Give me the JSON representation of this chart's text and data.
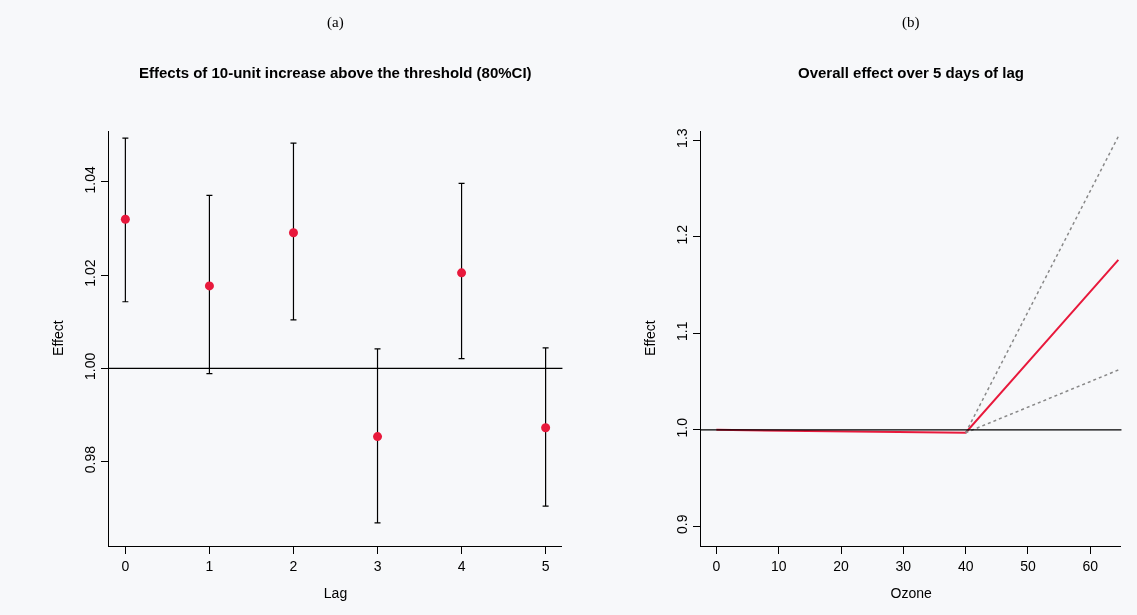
{
  "chart_data": [
    {
      "type": "scatter",
      "title": "Effects of 10-unit increase above the threshold (80%CI)",
      "annotations": [
        "(a)"
      ],
      "xlabel": "Lag",
      "ylabel": "Effect",
      "x": [
        0,
        1,
        2,
        3,
        4,
        5
      ],
      "series": [
        {
          "color": "#e8193c",
          "values": [
            1.032,
            1.0177,
            1.0291,
            0.9854,
            1.0205,
            0.9873
          ],
          "errors": [
            [
              1.0143,
              1.0494
            ],
            [
              0.9989,
              1.0371
            ],
            [
              1.0104,
              1.0483
            ],
            [
              0.9669,
              1.0042
            ],
            [
              1.0021,
              1.0397
            ],
            [
              0.9705,
              1.0044
            ]
          ]
        }
      ],
      "marker": "circle",
      "xlim": [
        -0.2,
        5.2
      ],
      "xticks": [
        0,
        1,
        2,
        3,
        4,
        5
      ],
      "ylim": [
        0.962,
        1.051
      ],
      "yticks": [
        0.98,
        {
          "value": 1.0,
          "label": "1.00"
        },
        1.02,
        1.04
      ],
      "ref_lines": [
        {
          "axis": "y",
          "value": 1.0,
          "color": "#000000"
        }
      ],
      "grid": false
    },
    {
      "type": "line",
      "title": "Overall effect over 5 days of lag",
      "annotations": [
        "(b)"
      ],
      "xlabel": "Ozone",
      "ylabel": "Effect",
      "series": [
        {
          "color": "#e8193c",
          "x": [
            0,
            40,
            64.5
          ],
          "values": [
            1.0,
            0.997,
            1.176
          ],
          "line_style": "solid"
        },
        {
          "color": "#888888",
          "x": [
            40,
            64.5
          ],
          "values": [
            0.997,
            1.304
          ],
          "line_style": "dotted"
        },
        {
          "color": "#888888",
          "x": [
            40,
            64.5
          ],
          "values": [
            0.997,
            1.062
          ],
          "line_style": "dotted"
        }
      ],
      "marker": "none",
      "xlim": [
        -2.5,
        65
      ],
      "xticks": [
        0,
        10,
        20,
        30,
        40,
        50,
        60
      ],
      "ylim": [
        0.88,
        1.31
      ],
      "yticks": [
        0.9,
        {
          "value": 1.0,
          "label": "1.0"
        },
        1.1,
        1.2,
        1.3
      ],
      "ref_lines": [
        {
          "axis": "y",
          "value": 1.0,
          "color": "#000000"
        }
      ],
      "grid": false
    }
  ]
}
